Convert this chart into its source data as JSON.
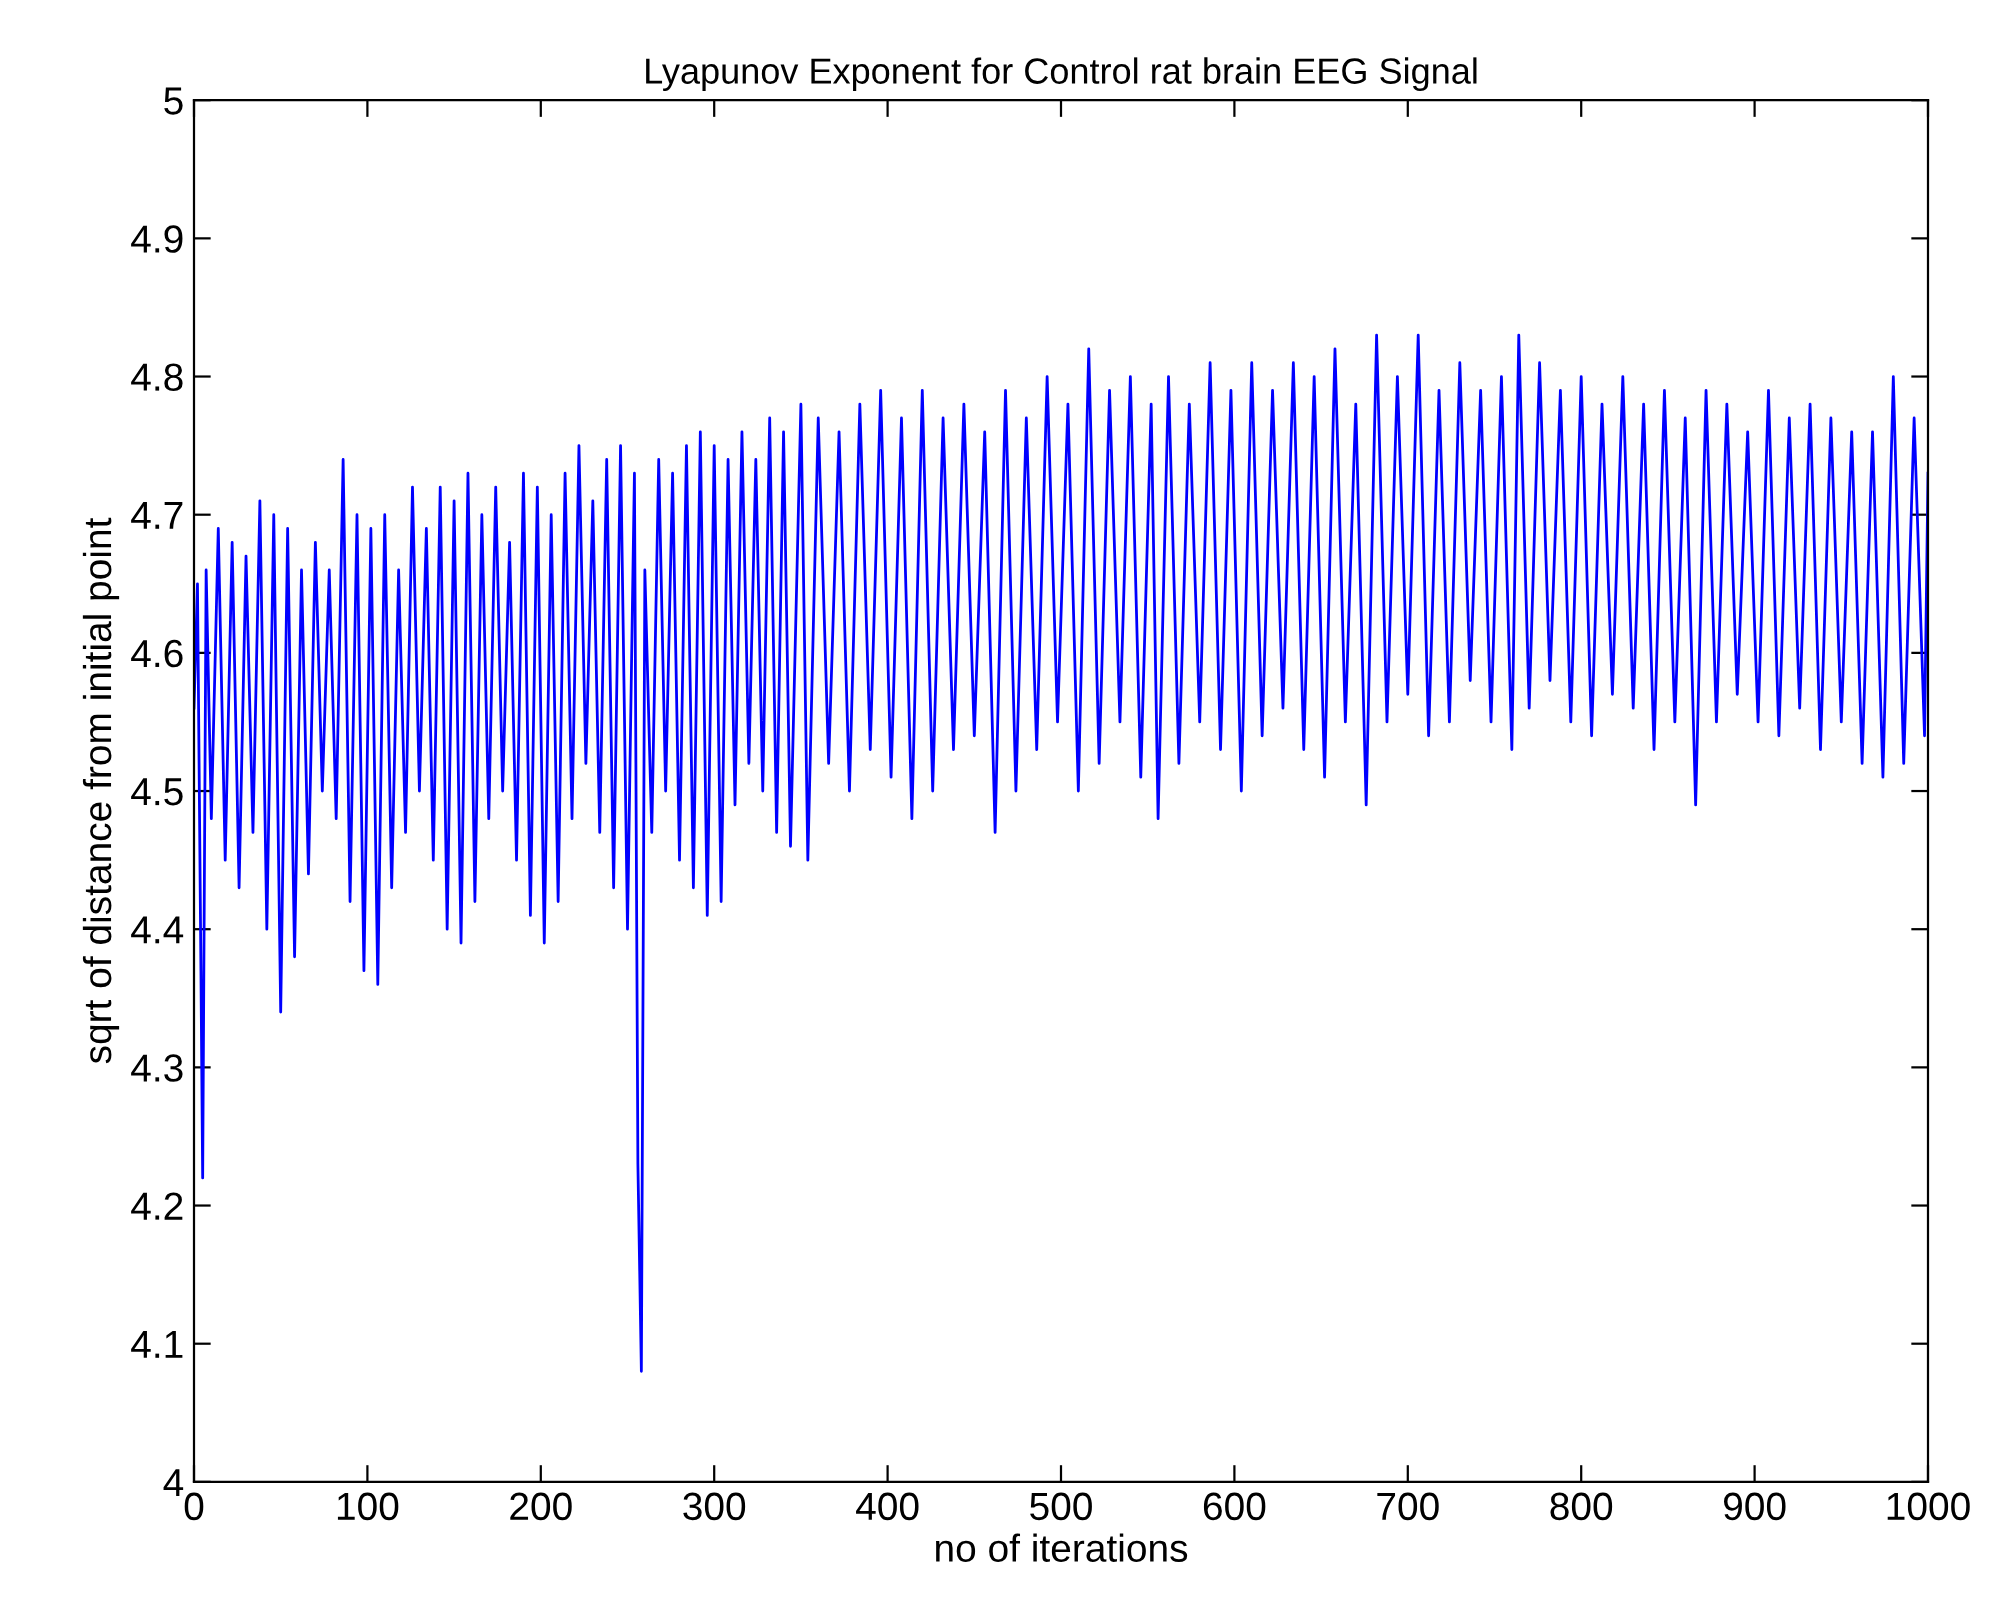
{
  "chart_data": {
    "type": "line",
    "title": "Lyapunov Exponent for Control rat brain EEG Signal",
    "xlabel": "no of iterations",
    "ylabel": "sqrt of distance from initial point",
    "xlim": [
      0,
      1000
    ],
    "ylim": [
      4,
      5
    ],
    "xticks": [
      0,
      100,
      200,
      300,
      400,
      500,
      600,
      700,
      800,
      900,
      1000
    ],
    "yticks": [
      4,
      4.1,
      4.2,
      4.3,
      4.4,
      4.5,
      4.6,
      4.7,
      4.8,
      4.9,
      5
    ],
    "grid": false,
    "marker": "none",
    "line_style": "solid",
    "series": [
      {
        "color": "#0000ff",
        "x": [
          0,
          2,
          4,
          5,
          7,
          10,
          14,
          18,
          22,
          26,
          30,
          34,
          38,
          42,
          46,
          50,
          54,
          58,
          62,
          66,
          70,
          74,
          78,
          82,
          86,
          90,
          94,
          98,
          102,
          106,
          110,
          114,
          118,
          122,
          126,
          130,
          134,
          138,
          142,
          146,
          150,
          154,
          158,
          162,
          166,
          170,
          174,
          178,
          182,
          186,
          190,
          194,
          198,
          202,
          206,
          210,
          214,
          218,
          222,
          226,
          230,
          234,
          238,
          242,
          246,
          250,
          254,
          256,
          258,
          260,
          264,
          268,
          272,
          276,
          280,
          284,
          288,
          292,
          296,
          300,
          304,
          308,
          312,
          316,
          320,
          324,
          328,
          332,
          336,
          340,
          344,
          350,
          354,
          360,
          366,
          372,
          378,
          384,
          390,
          396,
          402,
          408,
          414,
          420,
          426,
          432,
          438,
          444,
          450,
          456,
          462,
          468,
          474,
          480,
          486,
          492,
          498,
          504,
          510,
          516,
          522,
          528,
          534,
          540,
          546,
          552,
          556,
          562,
          568,
          574,
          580,
          586,
          592,
          598,
          604,
          610,
          616,
          622,
          628,
          634,
          640,
          646,
          652,
          658,
          664,
          670,
          676,
          682,
          688,
          694,
          700,
          706,
          712,
          718,
          724,
          730,
          736,
          742,
          748,
          754,
          760,
          764,
          770,
          776,
          782,
          788,
          794,
          800,
          806,
          812,
          818,
          824,
          830,
          836,
          842,
          848,
          854,
          860,
          866,
          872,
          878,
          884,
          890,
          896,
          902,
          908,
          914,
          920,
          926,
          932,
          938,
          944,
          950,
          956,
          962,
          968,
          974,
          980,
          986,
          992,
          998,
          1000
        ],
        "values": [
          4.56,
          4.65,
          4.37,
          4.22,
          4.66,
          4.48,
          4.69,
          4.45,
          4.68,
          4.43,
          4.67,
          4.47,
          4.71,
          4.4,
          4.7,
          4.34,
          4.69,
          4.38,
          4.66,
          4.44,
          4.68,
          4.5,
          4.66,
          4.48,
          4.74,
          4.42,
          4.7,
          4.37,
          4.69,
          4.36,
          4.7,
          4.43,
          4.66,
          4.47,
          4.72,
          4.5,
          4.69,
          4.45,
          4.72,
          4.4,
          4.71,
          4.39,
          4.73,
          4.42,
          4.7,
          4.48,
          4.72,
          4.5,
          4.68,
          4.45,
          4.73,
          4.41,
          4.72,
          4.39,
          4.7,
          4.42,
          4.73,
          4.48,
          4.75,
          4.52,
          4.71,
          4.47,
          4.74,
          4.43,
          4.75,
          4.4,
          4.73,
          4.23,
          4.08,
          4.66,
          4.47,
          4.74,
          4.5,
          4.73,
          4.45,
          4.75,
          4.43,
          4.76,
          4.41,
          4.75,
          4.42,
          4.74,
          4.49,
          4.76,
          4.52,
          4.74,
          4.5,
          4.77,
          4.47,
          4.76,
          4.46,
          4.78,
          4.45,
          4.77,
          4.52,
          4.76,
          4.5,
          4.78,
          4.53,
          4.79,
          4.51,
          4.77,
          4.48,
          4.79,
          4.5,
          4.77,
          4.53,
          4.78,
          4.54,
          4.76,
          4.47,
          4.79,
          4.5,
          4.77,
          4.53,
          4.8,
          4.55,
          4.78,
          4.5,
          4.82,
          4.52,
          4.79,
          4.55,
          4.8,
          4.51,
          4.78,
          4.48,
          4.8,
          4.52,
          4.78,
          4.55,
          4.81,
          4.53,
          4.79,
          4.5,
          4.81,
          4.54,
          4.79,
          4.56,
          4.81,
          4.53,
          4.8,
          4.51,
          4.82,
          4.55,
          4.78,
          4.49,
          4.83,
          4.55,
          4.8,
          4.57,
          4.83,
          4.54,
          4.79,
          4.55,
          4.81,
          4.58,
          4.79,
          4.55,
          4.8,
          4.53,
          4.83,
          4.56,
          4.81,
          4.58,
          4.79,
          4.55,
          4.8,
          4.54,
          4.78,
          4.57,
          4.8,
          4.56,
          4.78,
          4.53,
          4.79,
          4.55,
          4.77,
          4.49,
          4.79,
          4.55,
          4.78,
          4.57,
          4.76,
          4.55,
          4.79,
          4.54,
          4.77,
          4.56,
          4.78,
          4.53,
          4.77,
          4.55,
          4.76,
          4.52,
          4.76,
          4.51,
          4.8,
          4.52,
          4.77,
          4.54,
          4.73
        ]
      }
    ]
  }
}
